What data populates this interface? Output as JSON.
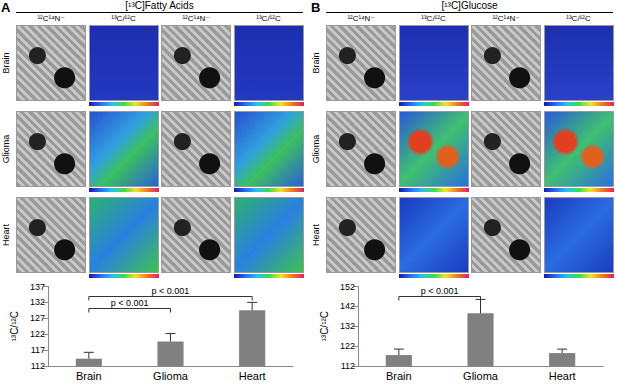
{
  "figure": {
    "panels": [
      {
        "letter": "A",
        "header": "[¹³C]Fatty Acids",
        "image_columns": [
          "¹²C¹⁴N⁻",
          "¹³C/¹²C",
          "¹²C¹⁴N⁻",
          "¹³C/¹²C"
        ],
        "image_rows": [
          "Brain",
          "Glioma",
          "Heart"
        ]
      },
      {
        "letter": "B",
        "header": "[¹³C]Glucose",
        "image_columns": [
          "¹²C¹⁴N⁻",
          "¹³C/¹²C",
          "¹²C¹⁴N⁻",
          "¹³C/¹²C"
        ],
        "image_rows": [
          "Brain",
          "Glioma",
          "Heart"
        ]
      }
    ]
  },
  "chart_data": [
    {
      "type": "bar",
      "ylabel": "¹³C/¹²C",
      "categories": [
        "Brain",
        "Glioma",
        "Heart"
      ],
      "values": [
        114.3,
        119.7,
        129.5
      ],
      "errors": [
        2.0,
        2.5,
        2.5
      ],
      "color": "#808080",
      "ylim": [
        112,
        137
      ],
      "yticks": [
        112,
        117,
        122,
        127,
        132,
        137
      ],
      "grid": false,
      "annotations": [
        {
          "text": "p < 0.001",
          "from": "Brain",
          "to": "Heart"
        },
        {
          "text": "p < 0.001",
          "from": "Brain",
          "to": "Glioma"
        }
      ]
    },
    {
      "type": "bar",
      "ylabel": "¹³C/¹²C",
      "categories": [
        "Brain",
        "Glioma",
        "Heart"
      ],
      "values": [
        117.5,
        138.5,
        118.5
      ],
      "errors": [
        3.0,
        7.0,
        2.0
      ],
      "color": "#808080",
      "ylim": [
        112,
        152
      ],
      "yticks": [
        112,
        122,
        132,
        142,
        152
      ],
      "grid": false,
      "annotations": [
        {
          "text": "p < 0.001",
          "from": "Brain",
          "to": "Glioma"
        }
      ]
    }
  ]
}
